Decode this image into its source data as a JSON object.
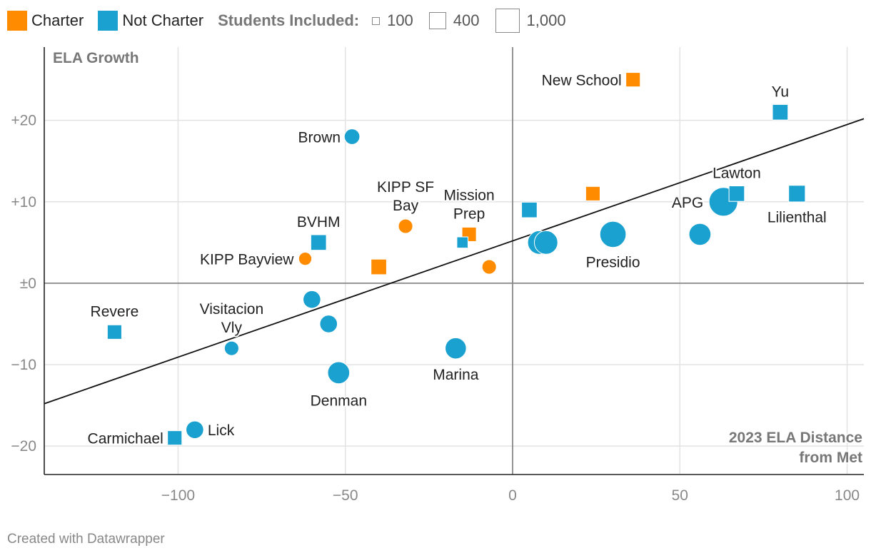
{
  "legend": {
    "charter": "Charter",
    "not_charter": "Not Charter",
    "size_title": "Students Included:",
    "size_100": "100",
    "size_400": "400",
    "size_1000": "1,000"
  },
  "credit": "Created with Datawrapper",
  "colors": {
    "charter": "#ff8c00",
    "not_charter": "#1aa1cf",
    "grid": "#e2e2e2",
    "axis": "#888888"
  },
  "chart_data": {
    "type": "scatter",
    "title": "",
    "xlabel": "2023 ELA Distance from Met",
    "xlabel_lines": [
      "2023 ELA Distance",
      "from Met"
    ],
    "ylabel": "ELA Growth",
    "xlim": [
      -140,
      105
    ],
    "ylim": [
      -23.5,
      29
    ],
    "x_ticks": [
      -100,
      -50,
      0,
      50,
      100
    ],
    "x_tick_labels": [
      "−100",
      "−50",
      "0",
      "50",
      "100"
    ],
    "y_ticks": [
      20,
      10,
      0,
      -10,
      -20
    ],
    "y_tick_labels": [
      "+20",
      "+10",
      "±0",
      "−10",
      "−20"
    ],
    "trendline": {
      "x1": -140,
      "y1": -14.8,
      "x2": 105,
      "y2": 20.2
    },
    "points": [
      {
        "x": 36,
        "y": 25,
        "group": "Charter",
        "shape": "square",
        "size": 300,
        "label": "New School"
      },
      {
        "x": 80,
        "y": 21,
        "group": "Not Charter",
        "shape": "square",
        "size": 350,
        "label": "Yu"
      },
      {
        "x": -48,
        "y": 18,
        "group": "Not Charter",
        "shape": "circle",
        "size": 350,
        "label": "Brown"
      },
      {
        "x": 67,
        "y": 11,
        "group": "Not Charter",
        "shape": "square",
        "size": 350,
        "label": "Lawton"
      },
      {
        "x": 85,
        "y": 11,
        "group": "Not Charter",
        "shape": "square",
        "size": 400,
        "label": "Lilienthal"
      },
      {
        "x": 63,
        "y": 10,
        "group": "Not Charter",
        "shape": "circle",
        "size": 1200,
        "label": "APG"
      },
      {
        "x": 24,
        "y": 11,
        "group": "Charter",
        "shape": "square",
        "size": 300,
        "label": ""
      },
      {
        "x": 5,
        "y": 9,
        "group": "Not Charter",
        "shape": "square",
        "size": 350,
        "label": ""
      },
      {
        "x": -32,
        "y": 7,
        "group": "Charter",
        "shape": "circle",
        "size": 300,
        "label": "KIPP SF Bay"
      },
      {
        "x": -13,
        "y": 6,
        "group": "Charter",
        "shape": "square",
        "size": 300,
        "label": "Mission Prep"
      },
      {
        "x": -15,
        "y": 5,
        "group": "Not Charter",
        "shape": "square",
        "size": 180,
        "label": ""
      },
      {
        "x": -58,
        "y": 5,
        "group": "Not Charter",
        "shape": "square",
        "size": 350,
        "label": "BVHM"
      },
      {
        "x": 8,
        "y": 5,
        "group": "Not Charter",
        "shape": "circle",
        "size": 800,
        "label": ""
      },
      {
        "x": 10,
        "y": 5,
        "group": "Not Charter",
        "shape": "circle",
        "size": 800,
        "label": ""
      },
      {
        "x": 30,
        "y": 6,
        "group": "Not Charter",
        "shape": "circle",
        "size": 1000,
        "label": "Presidio"
      },
      {
        "x": 56,
        "y": 6,
        "group": "Not Charter",
        "shape": "circle",
        "size": 700,
        "label": ""
      },
      {
        "x": -62,
        "y": 3,
        "group": "Charter",
        "shape": "circle",
        "size": 250,
        "label": "KIPP Bayview"
      },
      {
        "x": -40,
        "y": 2,
        "group": "Charter",
        "shape": "square",
        "size": 350,
        "label": ""
      },
      {
        "x": -7,
        "y": 2,
        "group": "Charter",
        "shape": "circle",
        "size": 300,
        "label": ""
      },
      {
        "x": -60,
        "y": -2,
        "group": "Not Charter",
        "shape": "circle",
        "size": 450,
        "label": ""
      },
      {
        "x": -55,
        "y": -5,
        "group": "Not Charter",
        "shape": "circle",
        "size": 450,
        "label": ""
      },
      {
        "x": -119,
        "y": -6,
        "group": "Not Charter",
        "shape": "square",
        "size": 300,
        "label": "Revere"
      },
      {
        "x": -84,
        "y": -8,
        "group": "Not Charter",
        "shape": "circle",
        "size": 300,
        "label": "Visitacion Vly"
      },
      {
        "x": -17,
        "y": -8,
        "group": "Not Charter",
        "shape": "circle",
        "size": 650,
        "label": "Marina"
      },
      {
        "x": -52,
        "y": -11,
        "group": "Not Charter",
        "shape": "circle",
        "size": 700,
        "label": "Denman"
      },
      {
        "x": -95,
        "y": -18,
        "group": "Not Charter",
        "shape": "circle",
        "size": 450,
        "label": "Lick"
      },
      {
        "x": -101,
        "y": -19,
        "group": "Not Charter",
        "shape": "square",
        "size": 300,
        "label": "Carmichael"
      }
    ]
  }
}
